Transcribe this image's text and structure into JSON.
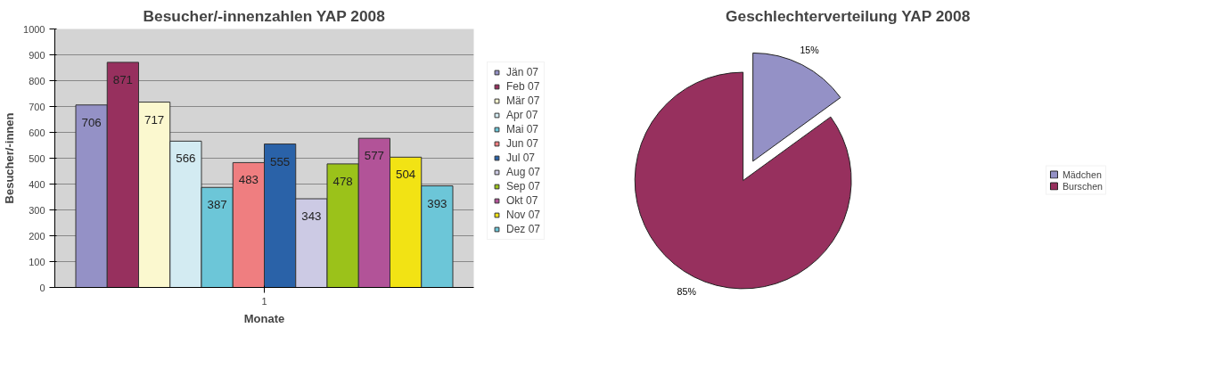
{
  "chart_data": [
    {
      "type": "bar",
      "title": "Besucher/-innenzahlen YAP 2008",
      "xlabel": "Monate",
      "ylabel": "Besucher/-innen",
      "categories": [
        "1"
      ],
      "series": [
        {
          "name": "Jän 07",
          "color": "#9491c6",
          "values": [
            706
          ]
        },
        {
          "name": "Feb 07",
          "color": "#97305e",
          "values": [
            871
          ]
        },
        {
          "name": "Mär 07",
          "color": "#fbf8cf",
          "values": [
            717
          ]
        },
        {
          "name": "Apr 07",
          "color": "#d3ebf2",
          "values": [
            566
          ]
        },
        {
          "name": "Mai 07",
          "color": "#6cc6d8",
          "values": [
            387
          ]
        },
        {
          "name": "Jun 07",
          "color": "#ef7e80",
          "values": [
            483
          ]
        },
        {
          "name": "Jul 07",
          "color": "#2a62a8",
          "values": [
            555
          ]
        },
        {
          "name": "Aug 07",
          "color": "#cccae4",
          "values": [
            343
          ]
        },
        {
          "name": "Sep 07",
          "color": "#9bc21a",
          "values": [
            478
          ]
        },
        {
          "name": "Okt 07",
          "color": "#b25398",
          "values": [
            577
          ]
        },
        {
          "name": "Nov 07",
          "color": "#f2e314",
          "values": [
            504
          ]
        },
        {
          "name": "Dez 07",
          "color": "#6cc6d8",
          "values": [
            393
          ]
        }
      ],
      "ylim": [
        0,
        1000
      ],
      "yticks": [
        0,
        100,
        200,
        300,
        400,
        500,
        600,
        700,
        800,
        900,
        1000
      ],
      "grid": "y",
      "legend": "right",
      "data_labels": true
    },
    {
      "type": "pie",
      "title": "Geschlechterverteilung YAP 2008",
      "categories": [
        "Mädchen",
        "Burschen"
      ],
      "values": [
        15,
        85
      ],
      "colors": [
        "#9491c6",
        "#97305e"
      ],
      "legend": "right",
      "value_labels": [
        "15%",
        "85%"
      ]
    }
  ]
}
